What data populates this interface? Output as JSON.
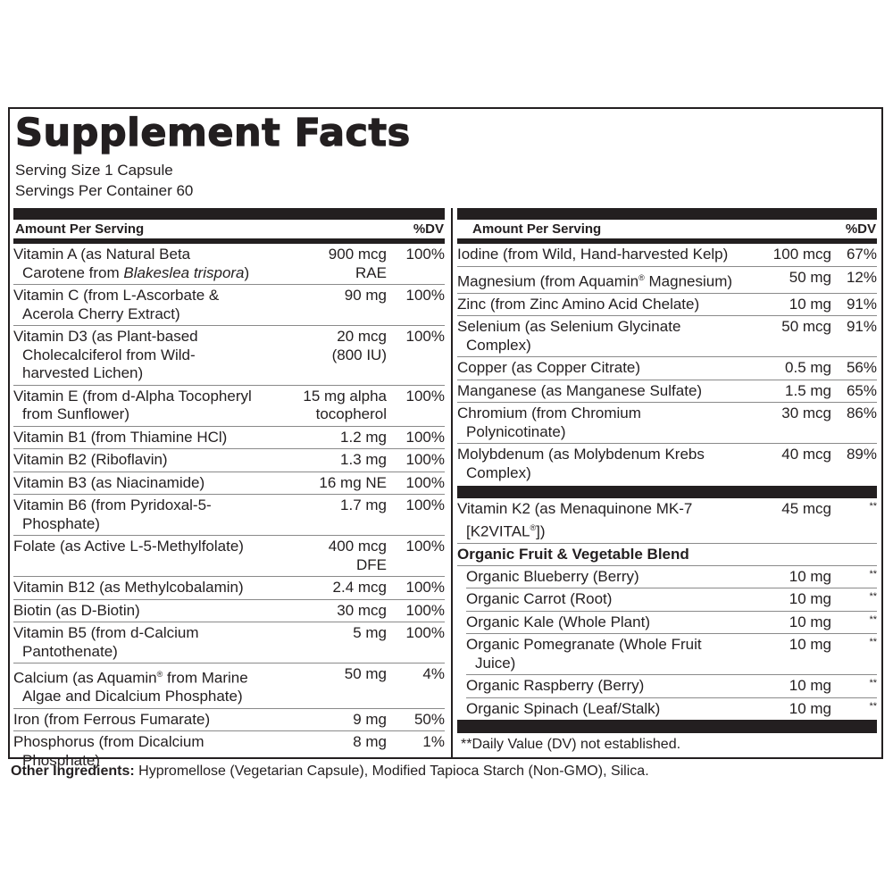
{
  "title": "Supplement Facts",
  "serving_size": "Serving Size 1 Capsule",
  "servings_per_container": "Servings Per Container 60",
  "header": {
    "amount": "Amount Per Serving",
    "dv": "%DV"
  },
  "left_rows": [
    {
      "name": "Vitamin A (as Natural Beta Carotene from ",
      "name_italic": "Blakeslea trispora",
      "name_end": ")",
      "amount": "900 mcg\nRAE",
      "dv": "100%"
    },
    {
      "name": "Vitamin C (from L-Ascorbate & Acerola Cherry Extract)",
      "amount": "90 mg",
      "dv": "100%"
    },
    {
      "name": "Vitamin D3 (as Plant-based Cholecalciferol from Wild-harvested Lichen)",
      "amount": "20 mcg\n(800 IU)",
      "dv": "100%"
    },
    {
      "name": "Vitamin E (from d-Alpha Tocopheryl from Sunflower)",
      "amount": "15 mg alpha\ntocopherol",
      "dv": "100%"
    },
    {
      "name": "Vitamin B1 (from Thiamine HCl)",
      "amount": "1.2 mg",
      "dv": "100%"
    },
    {
      "name": "Vitamin B2 (Riboflavin)",
      "amount": "1.3 mg",
      "dv": "100%"
    },
    {
      "name": "Vitamin B3 (as Niacinamide)",
      "amount": "16 mg NE",
      "dv": "100%"
    },
    {
      "name": "Vitamin B6 (from Pyridoxal-5-Phosphate)",
      "amount": "1.7 mg",
      "dv": "100%"
    },
    {
      "name": "Folate (as Active L-5-Methylfolate)",
      "amount": "400 mcg\nDFE",
      "dv": "100%"
    },
    {
      "name": "Vitamin B12 (as Methylcobalamin)",
      "amount": "2.4 mcg",
      "dv": "100%"
    },
    {
      "name": "Biotin (as D-Biotin)",
      "amount": "30 mcg",
      "dv": "100%"
    },
    {
      "name": "Vitamin B5 (from d-Calcium Pantothenate)",
      "amount": "5 mg",
      "dv": "100%"
    },
    {
      "name": "Calcium (as Aquamin® from Marine Algae and Dicalcium Phosphate)",
      "amount": "50 mg",
      "dv": "4%"
    },
    {
      "name": "Iron (from Ferrous Fumarate)",
      "amount": "9 mg",
      "dv": "50%"
    },
    {
      "name": "Phosphorus (from Dicalcium Phosphate)",
      "amount": "8 mg",
      "dv": "1%"
    }
  ],
  "right_rows": [
    {
      "name": "Iodine (from Wild, Hand-harvested Kelp)",
      "amount": "100 mcg",
      "dv": "67%"
    },
    {
      "name": "Magnesium (from Aquamin® Magnesium)",
      "amount": "50 mg",
      "dv": "12%"
    },
    {
      "name": "Zinc (from Zinc Amino Acid Chelate)",
      "amount": "10 mg",
      "dv": "91%"
    },
    {
      "name": "Selenium (as Selenium Glycinate Complex)",
      "amount": "50 mcg",
      "dv": "91%"
    },
    {
      "name": "Copper (as Copper Citrate)",
      "amount": "0.5 mg",
      "dv": "56%"
    },
    {
      "name": "Manganese (as Manganese Sulfate)",
      "amount": "1.5 mg",
      "dv": "65%"
    },
    {
      "name": "Chromium (from Chromium Polynicotinate)",
      "amount": "30 mcg",
      "dv": "86%"
    },
    {
      "name": "Molybdenum (as Molybdenum Krebs Complex)",
      "amount": "40 mcg",
      "dv": "89%"
    }
  ],
  "k2_row": {
    "name": "Vitamin K2 (as Menaquinone MK-7 [K2VITAL®])",
    "amount": "45 mcg",
    "dv": "**"
  },
  "blend": {
    "title": "Organic Fruit & Vegetable Blend",
    "items": [
      {
        "name": "Organic Blueberry (Berry)",
        "amount": "10 mg",
        "dv": "**"
      },
      {
        "name": "Organic Carrot (Root)",
        "amount": "10 mg",
        "dv": "**"
      },
      {
        "name": "Organic Kale (Whole Plant)",
        "amount": "10 mg",
        "dv": "**"
      },
      {
        "name": "Organic Pomegranate (Whole Fruit Juice)",
        "amount": "10 mg",
        "dv": "**"
      },
      {
        "name": "Organic Raspberry (Berry)",
        "amount": "10 mg",
        "dv": "**"
      },
      {
        "name": "Organic Spinach (Leaf/Stalk)",
        "amount": "10 mg",
        "dv": "**"
      }
    ]
  },
  "footnote": "**Daily Value (DV) not established.",
  "other_ingredients": {
    "label": "Other Ingredients:",
    "text": " Hypromellose (Vegetarian Capsule), Modified Tapioca Starch (Non-GMO), Silica."
  }
}
